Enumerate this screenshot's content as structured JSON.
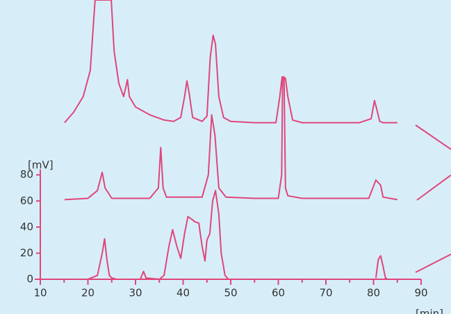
{
  "chart_data": {
    "type": "line",
    "y_label": "[mV]",
    "x_label": "[min]",
    "xlim": [
      10,
      90
    ],
    "xticks": [
      10,
      20,
      30,
      40,
      50,
      60,
      70,
      80,
      90
    ],
    "ylim": [
      0,
      214
    ],
    "yticks": [
      0,
      20,
      40,
      60,
      80
    ],
    "color": "#e0457a",
    "series": [
      {
        "x": [
          15.1,
          17,
          19,
          20.5,
          21.5,
          24.9,
          25.5,
          26.5,
          27.5,
          28,
          28.3,
          28.7,
          30,
          33,
          36,
          38,
          39.5,
          40.3,
          40.8,
          41.3,
          42,
          44,
          45,
          45.7,
          46.3,
          46.8,
          47.5,
          48.5,
          50,
          55,
          59.5,
          60.3,
          60.8,
          61.5,
          62,
          63,
          65,
          70,
          77,
          79.5,
          80.2,
          80.7,
          81.3,
          82,
          85
        ],
        "values": [
          120,
          128,
          140,
          160,
          214,
          214,
          175,
          150,
          140,
          148,
          153,
          140,
          132,
          126,
          122,
          121,
          124,
          140,
          152,
          142,
          124,
          121,
          125,
          170,
          187,
          180,
          140,
          124,
          121,
          120,
          120,
          140,
          155,
          154,
          140,
          122,
          120,
          120,
          120,
          123,
          137,
          130,
          121,
          120,
          120
        ]
      },
      {
        "x": [
          15.1,
          20,
          22,
          23,
          23.6,
          25,
          33,
          34.8,
          35.3,
          35.8,
          36.5,
          44,
          45.3,
          46,
          46.7,
          47.5,
          49,
          55,
          60,
          60.7,
          60.9,
          61.2,
          61.5,
          62,
          65,
          79,
          80.5,
          81.5,
          82,
          85
        ],
        "values": [
          61,
          62,
          68,
          82,
          70,
          62,
          62,
          70,
          101,
          70,
          63,
          63,
          80,
          126,
          110,
          70,
          63,
          62,
          62,
          80,
          155,
          155,
          70,
          64,
          62,
          62,
          76,
          72,
          63,
          61
        ]
      },
      {
        "x": [
          20,
          22,
          23,
          23.5,
          24,
          24.5,
          25,
          26,
          31,
          31.7,
          32.2,
          35,
          36,
          37,
          37.8,
          38.7,
          39.5,
          40.3,
          41,
          41.8,
          42.5,
          43.3,
          44,
          44.6,
          45,
          45.6,
          46.2,
          46.8,
          47.5,
          48,
          48.8,
          49.5,
          80,
          80.5,
          81,
          81.5,
          82,
          82.5,
          83
        ],
        "values": [
          0,
          3,
          20,
          31,
          15,
          3,
          1,
          0,
          0,
          6,
          1,
          0,
          3,
          25,
          38,
          25,
          16,
          35,
          48,
          46,
          44,
          43,
          25,
          14,
          30,
          35,
          60,
          68,
          50,
          20,
          3,
          0,
          null,
          1,
          15,
          18,
          10,
          1,
          0
        ]
      }
    ]
  }
}
